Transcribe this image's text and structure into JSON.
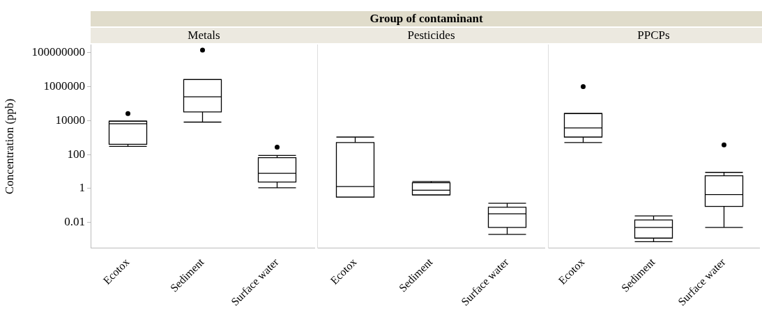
{
  "chart_data": [
    {
      "type": "box",
      "title": "Metals",
      "ylabel": "Concentration (ppb)",
      "annotations": [
        "Group of contaminant"
      ],
      "log": true,
      "ylim": [
        0.0003,
        300000000
      ],
      "yticks": [
        100000000,
        1000000,
        10000,
        100,
        1,
        0.01
      ],
      "categories": [
        "Ecotox",
        "Sediment",
        "Surface water"
      ],
      "color": "#000000",
      "boxes": [
        {
          "low": 300,
          "q1": 400,
          "median": 6500,
          "q3": 9300,
          "high": 9300,
          "outliers": [
            26000
          ]
        },
        {
          "low": 8100,
          "q1": 32000,
          "median": 250000,
          "q3": 2600000,
          "high": 2600000,
          "outliers": [
            140000000
          ]
        },
        {
          "low": 1.1,
          "q1": 2.4,
          "median": 7.8,
          "q3": 65,
          "high": 89,
          "outliers": [
            270
          ]
        }
      ]
    },
    {
      "type": "box",
      "title": "Pesticides",
      "log": true,
      "ylim": [
        0.0003,
        300000000
      ],
      "tick_labels": "x",
      "categories": [
        "Ecotox",
        "Sediment",
        "Surface water"
      ],
      "color": "#000000",
      "boxes": [
        {
          "low": 0.31,
          "q1": 0.31,
          "median": 1.3,
          "q3": 510,
          "high": 1070
        },
        {
          "low": 0.41,
          "q1": 0.42,
          "median": 0.8,
          "q3": 2.2,
          "high": 2.6
        },
        {
          "low": 0.002,
          "q1": 0.0051,
          "median": 0.032,
          "q3": 0.078,
          "high": 0.135
        }
      ]
    },
    {
      "type": "box",
      "title": "PPCPs",
      "log": true,
      "ylim": [
        0.0003,
        300000000
      ],
      "tick_labels": "x",
      "categories": [
        "Ecotox",
        "Sediment",
        "Surface water"
      ],
      "color": "#000000",
      "boxes": [
        {
          "low": 510,
          "q1": 1070,
          "median": 3700,
          "q3": 26000,
          "high": 26000,
          "outliers": [
            1000000
          ]
        },
        {
          "low": 0.00074,
          "q1": 0.0012,
          "median": 0.0051,
          "q3": 0.014,
          "high": 0.024
        },
        {
          "low": 0.0051,
          "q1": 0.089,
          "median": 0.44,
          "q3": 5.6,
          "high": 8.9,
          "outliers": [
            370
          ]
        }
      ]
    }
  ]
}
